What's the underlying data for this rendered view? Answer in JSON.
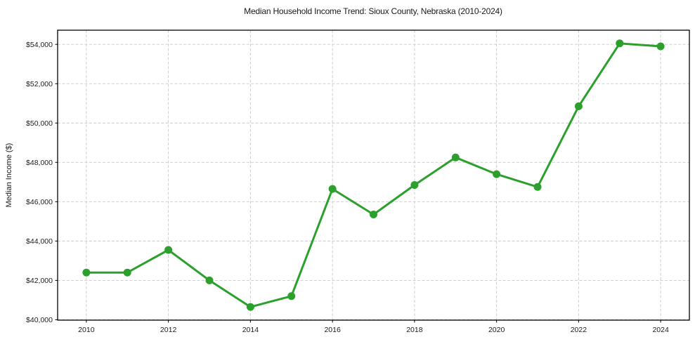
{
  "chart_data": {
    "type": "line",
    "title": "Median Household Income Trend: Sioux County, Nebraska (2010-2024)",
    "xlabel": "",
    "ylabel": "Median Income ($)",
    "x": [
      2010,
      2011,
      2012,
      2013,
      2014,
      2015,
      2016,
      2017,
      2018,
      2019,
      2020,
      2021,
      2022,
      2023,
      2024
    ],
    "values": [
      42400,
      42400,
      43550,
      42000,
      40650,
      41200,
      46650,
      45350,
      46850,
      48250,
      47400,
      46750,
      50850,
      54050,
      53900
    ],
    "series_name": "Median household income",
    "xlim": [
      2009.3,
      2024.7
    ],
    "ylim": [
      39980,
      54720
    ],
    "x_ticks": [
      2010,
      2012,
      2014,
      2016,
      2018,
      2020,
      2022,
      2024
    ],
    "y_ticks": [
      40000,
      42000,
      44000,
      46000,
      48000,
      50000,
      52000,
      54000
    ],
    "y_tick_labels": [
      "$40,000",
      "$42,000",
      "$44,000",
      "$46,000",
      "$48,000",
      "$50,000",
      "$52,000",
      "$54,000"
    ],
    "grid": true,
    "legend": "none",
    "colors": {
      "line": "#2ca02c",
      "marker": "#2ca02c",
      "grid": "#c9c9c9",
      "frame": "#000000",
      "text": "#1a1a1a"
    },
    "style": {
      "line_width": 3,
      "marker_radius": 5.5,
      "grid_dash": "4 2.4"
    }
  }
}
